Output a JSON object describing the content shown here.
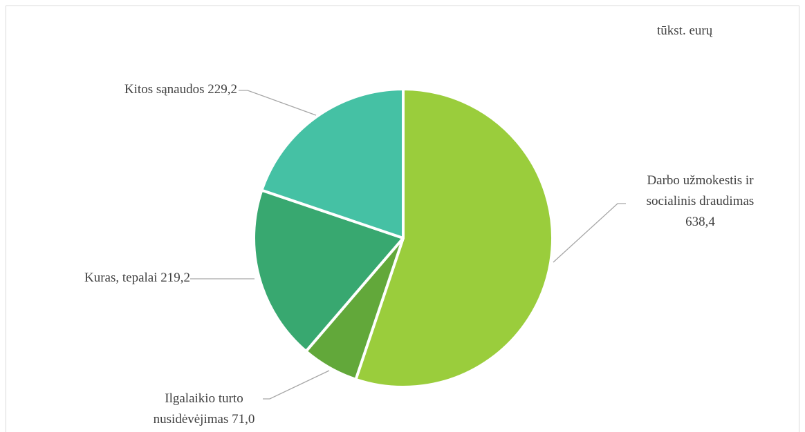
{
  "chart_data": {
    "type": "pie",
    "subtitle": "tūkst. eurų",
    "categories": [
      "Darbo užmokestis ir socialinis draudimas",
      "Ilgalaikio turto nusidėvėjimas",
      "Kuras, tepalai",
      "Kitos sąnaudos"
    ],
    "values": [
      638.4,
      71.0,
      219.2,
      229.2
    ],
    "value_labels": [
      "638,4",
      "71,0",
      "219,2",
      "229,2"
    ],
    "colors": [
      "#9acd3c",
      "#62a83a",
      "#38a870",
      "#45c1a4"
    ]
  }
}
